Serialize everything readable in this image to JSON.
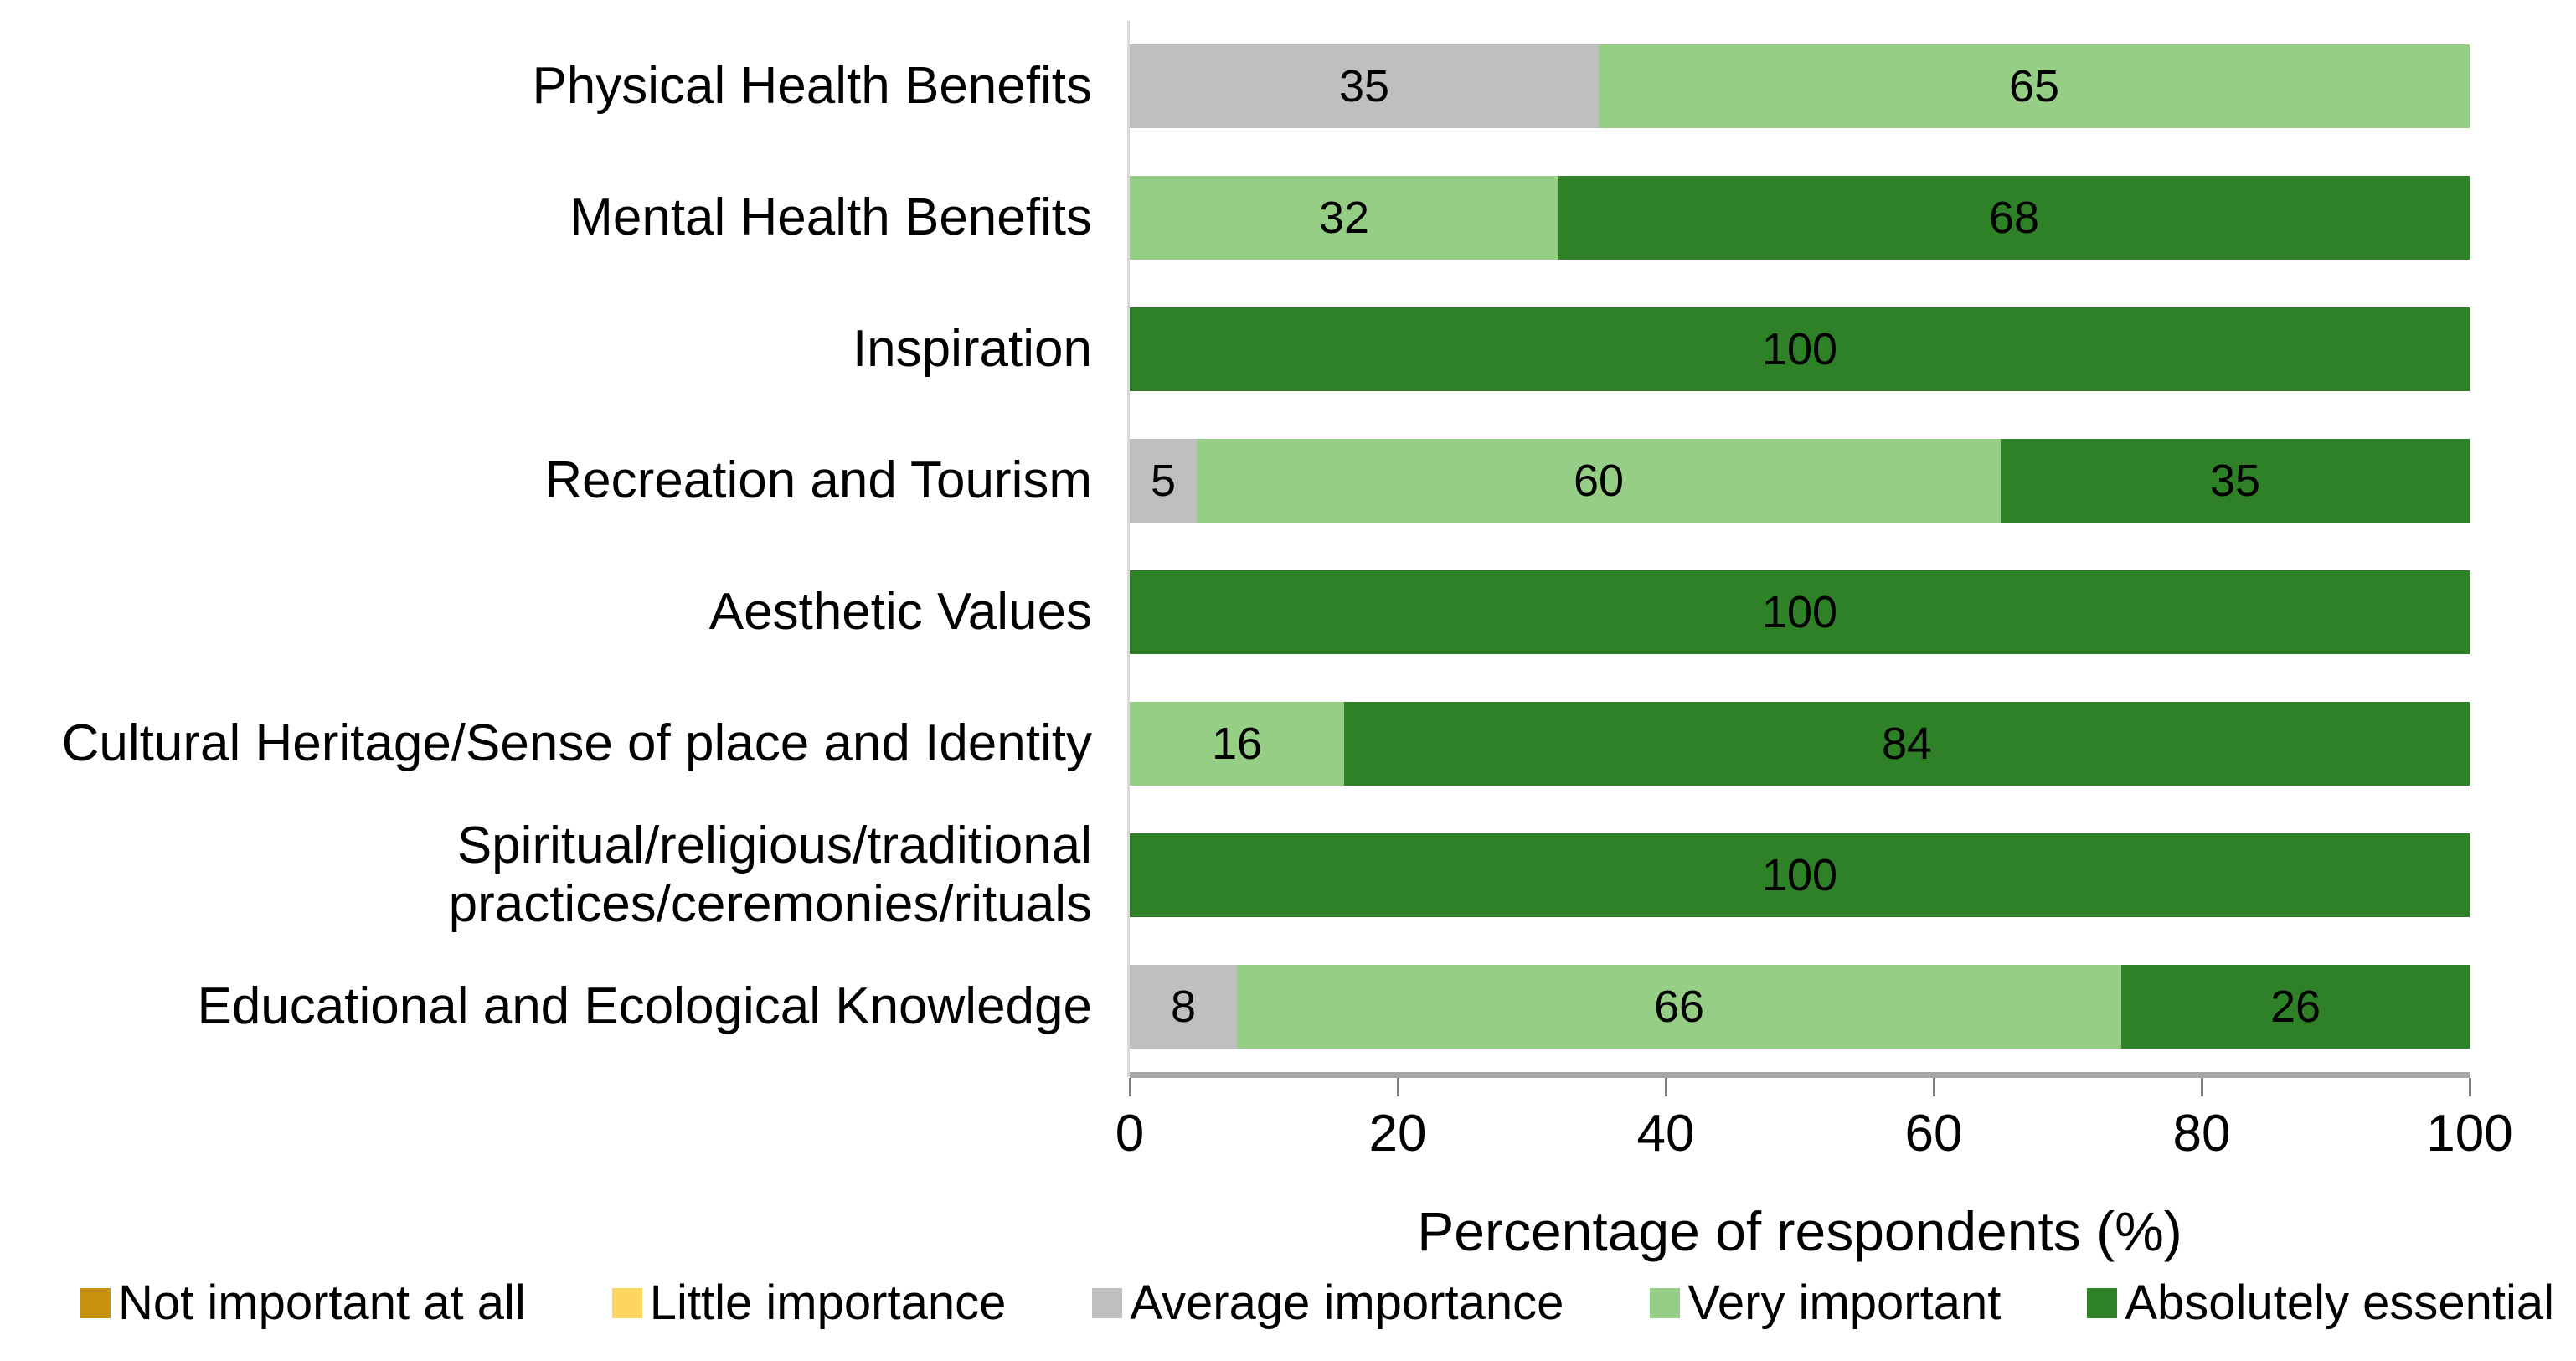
{
  "chart_data": {
    "type": "bar",
    "variant": "horizontal-stacked",
    "title": "",
    "xlabel": "Percentage of respondents (%)",
    "xlim": [
      0,
      100
    ],
    "x_ticks": [
      "0",
      "20",
      "40",
      "60",
      "80",
      "100"
    ],
    "grid": false,
    "legend_position": "bottom",
    "bar_labels_shown": true,
    "axis_line_color": "#A6A6A6",
    "tick_color": "#7F7F7F",
    "categories": [
      "Physical Health Benefits",
      "Mental Health Benefits",
      "Inspiration",
      "Recreation and Tourism",
      "Aesthetic Values",
      "Cultural Heritage/Sense of place and Identity",
      "Spiritual/religious/traditional\npractices/ceremonies/rituals",
      "Educational and Ecological Knowledge"
    ],
    "series": [
      {
        "name": "Not important at all",
        "color": "#C8920E",
        "values": [
          0,
          0,
          0,
          0,
          0,
          0,
          0,
          0
        ]
      },
      {
        "name": "Little importance",
        "color": "#FCD65F",
        "values": [
          0,
          0,
          0,
          0,
          0,
          0,
          0,
          0
        ]
      },
      {
        "name": "Average importance",
        "color": "#BFBFBF",
        "values": [
          35,
          0,
          0,
          5,
          0,
          0,
          0,
          8
        ]
      },
      {
        "name": "Very important",
        "color": "#96CE85",
        "values": [
          65,
          32,
          0,
          60,
          0,
          16,
          0,
          66
        ]
      },
      {
        "name": "Absolutely essential",
        "color": "#2F8127",
        "values": [
          0,
          68,
          100,
          35,
          100,
          84,
          100,
          26
        ]
      }
    ]
  }
}
